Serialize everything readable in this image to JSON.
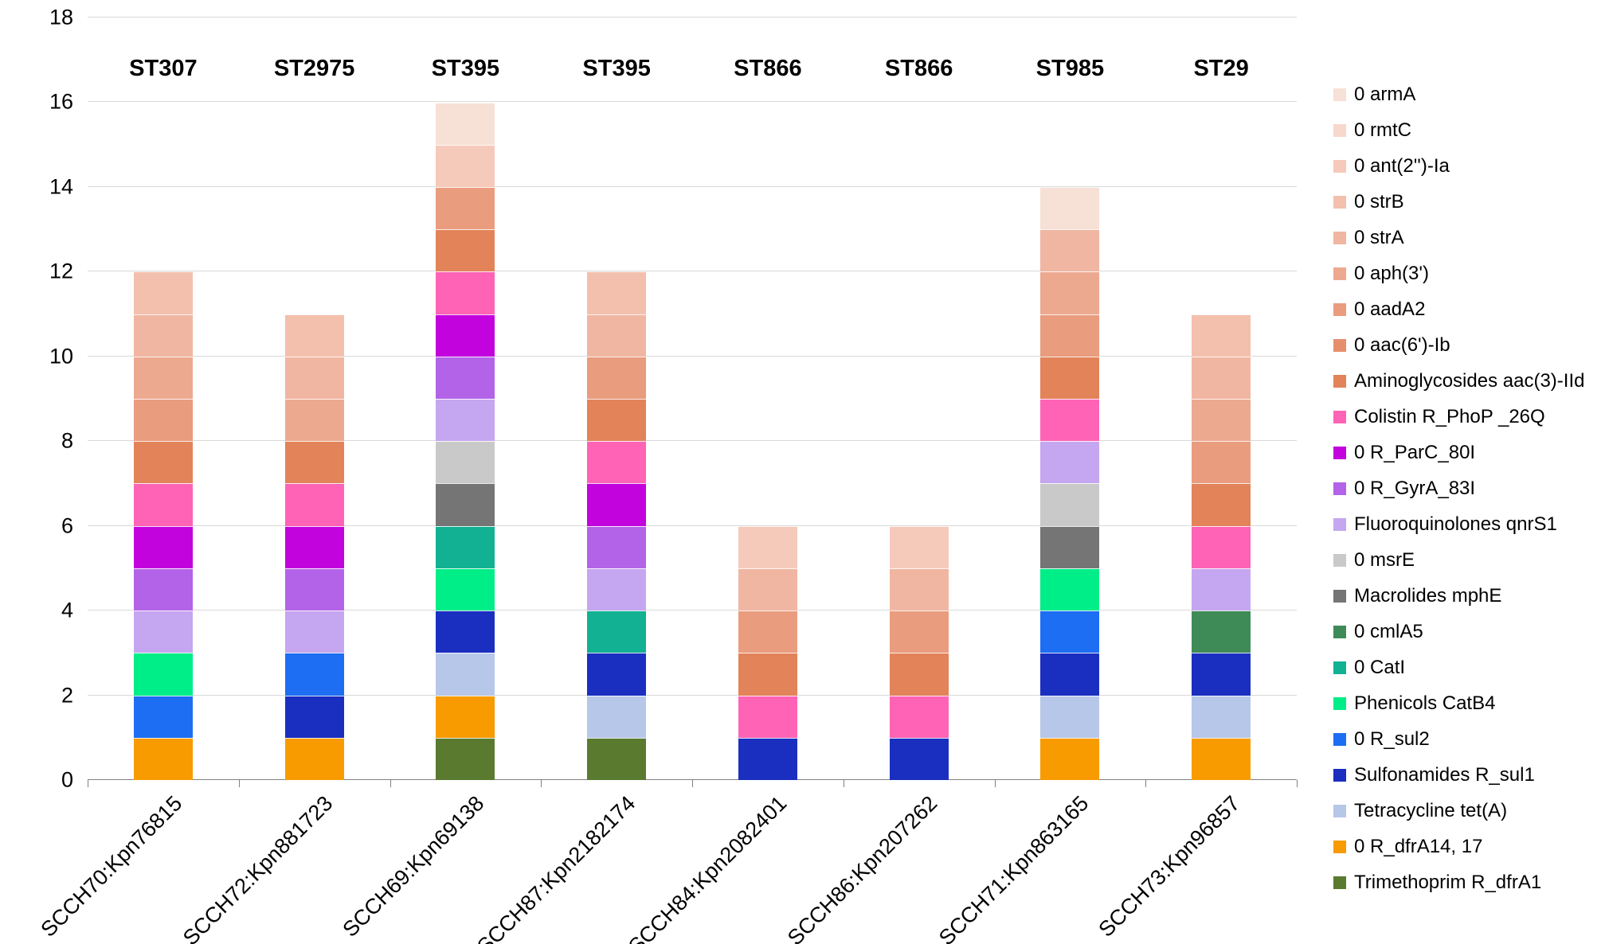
{
  "chart_data": {
    "type": "bar",
    "stacked": true,
    "title": "",
    "xlabel": "",
    "ylabel": "",
    "ylim": [
      0,
      18
    ],
    "yticks": [
      0,
      2,
      4,
      6,
      8,
      10,
      12,
      14,
      16,
      18
    ],
    "grid": true,
    "legend_position": "right",
    "unit_per_gene": 1,
    "categories": [
      "SCCH70:Kpn76815",
      "SCCH72:Kpn881723",
      "SCCH69:Kpn69138",
      "SCCH87:Kpn2182174",
      "SCCH84:Kpn2082401",
      "SCCH86:Kpn207262",
      "SCCH71:Kpn863165",
      "SCCH73:Kpn96857"
    ],
    "group_labels": [
      "ST307",
      "ST2975",
      "ST395",
      "ST395",
      "ST866",
      "ST866",
      "ST985",
      "ST29"
    ],
    "legend": [
      {
        "key": "armA",
        "label": "0 armA",
        "color": "#f7e0d6"
      },
      {
        "key": "rmtC",
        "label": "0 rmtC",
        "color": "#f8d8cc"
      },
      {
        "key": "ant2Ia",
        "label": "0 ant(2'')-Ia",
        "color": "#f5cabb"
      },
      {
        "key": "strB",
        "label": "0 strB",
        "color": "#f3c0ad"
      },
      {
        "key": "strA",
        "label": "0 strA",
        "color": "#f0b6a2"
      },
      {
        "key": "aph3",
        "label": "0 aph(3')",
        "color": "#eda990"
      },
      {
        "key": "aadA2",
        "label": "0 aadA2",
        "color": "#e99c7e"
      },
      {
        "key": "aac6Ib",
        "label": "0 aac(6')-Ib",
        "color": "#e68f6d"
      },
      {
        "key": "aac3IId",
        "label": "Aminoglycosides aac(3)-IId",
        "color": "#e2835a"
      },
      {
        "key": "phoP",
        "label": "Colistin R_PhoP _26Q",
        "color": "#ff63b5"
      },
      {
        "key": "parC",
        "label": "0 R_ParC_80I",
        "color": "#c203dd"
      },
      {
        "key": "gyrA",
        "label": "0 R_GyrA_83I",
        "color": "#b363e8"
      },
      {
        "key": "qnrS1",
        "label": "Fluoroquinolones qnrS1",
        "color": "#c5a6f0"
      },
      {
        "key": "msrE",
        "label": "0 msrE",
        "color": "#c9c9c9"
      },
      {
        "key": "mphE",
        "label": "Macrolides mphE",
        "color": "#757575"
      },
      {
        "key": "cmlA5",
        "label": "0 cmlA5",
        "color": "#3e8b58"
      },
      {
        "key": "catI",
        "label": "0 CatI",
        "color": "#12b193"
      },
      {
        "key": "catB4",
        "label": "Phenicols CatB4",
        "color": "#00ee88"
      },
      {
        "key": "sul2",
        "label": "0 R_sul2",
        "color": "#1d6ef2"
      },
      {
        "key": "sul1",
        "label": "Sulfonamides R_sul1",
        "color": "#1a2fc0"
      },
      {
        "key": "tetA",
        "label": "Tetracycline tet(A)",
        "color": "#b7c7e9"
      },
      {
        "key": "dfrA14",
        "label": "0 R_dfrA14, 17",
        "color": "#f79b00"
      },
      {
        "key": "dfrA1",
        "label": "Trimethoprim R_dfrA1",
        "color": "#5a7a30"
      }
    ],
    "bars": [
      {
        "category": "SCCH70:Kpn76815",
        "st": "ST307",
        "total": 12,
        "segments": [
          "dfrA14",
          "sul2",
          "catB4",
          "qnrS1",
          "gyrA",
          "parC",
          "phoP",
          "aac3IId",
          "aadA2",
          "aph3",
          "strA",
          "strB"
        ]
      },
      {
        "category": "SCCH72:Kpn881723",
        "st": "ST2975",
        "total": 11,
        "segments": [
          "dfrA14",
          "sul1",
          "sul2",
          "qnrS1",
          "gyrA",
          "parC",
          "phoP",
          "aac3IId",
          "aph3",
          "strA",
          "strB"
        ]
      },
      {
        "category": "SCCH69:Kpn69138",
        "st": "ST395",
        "total": 16,
        "segments": [
          "dfrA1",
          "dfrA14",
          "tetA",
          "sul1",
          "catB4",
          "catI",
          "mphE",
          "msrE",
          "qnrS1",
          "gyrA",
          "parC",
          "phoP",
          "aac3IId",
          "aadA2",
          "ant2Ia",
          "armA"
        ]
      },
      {
        "category": "SCCH87:Kpn2182174",
        "st": "ST395",
        "total": 12,
        "segments": [
          "dfrA1",
          "tetA",
          "sul1",
          "catI",
          "qnrS1",
          "gyrA",
          "parC",
          "phoP",
          "aac3IId",
          "aadA2",
          "strA",
          "strB"
        ]
      },
      {
        "category": "SCCH84:Kpn2082401",
        "st": "ST866",
        "total": 6,
        "segments": [
          "sul1",
          "phoP",
          "aac3IId",
          "aadA2",
          "strA",
          "ant2Ia"
        ]
      },
      {
        "category": "SCCH86:Kpn207262",
        "st": "ST866",
        "total": 6,
        "segments": [
          "sul1",
          "phoP",
          "aac3IId",
          "aadA2",
          "strA",
          "ant2Ia"
        ]
      },
      {
        "category": "SCCH71:Kpn863165",
        "st": "ST985",
        "total": 14,
        "segments": [
          "dfrA14",
          "tetA",
          "sul1",
          "sul2",
          "catB4",
          "mphE",
          "msrE",
          "qnrS1",
          "phoP",
          "aac3IId",
          "aadA2",
          "aph3",
          "strA",
          "armA"
        ]
      },
      {
        "category": "SCCH73:Kpn96857",
        "st": "ST29",
        "total": 11,
        "segments": [
          "dfrA14",
          "tetA",
          "sul1",
          "cmlA5",
          "qnrS1",
          "phoP",
          "aac3IId",
          "aadA2",
          "aph3",
          "strA",
          "strB"
        ]
      }
    ]
  }
}
